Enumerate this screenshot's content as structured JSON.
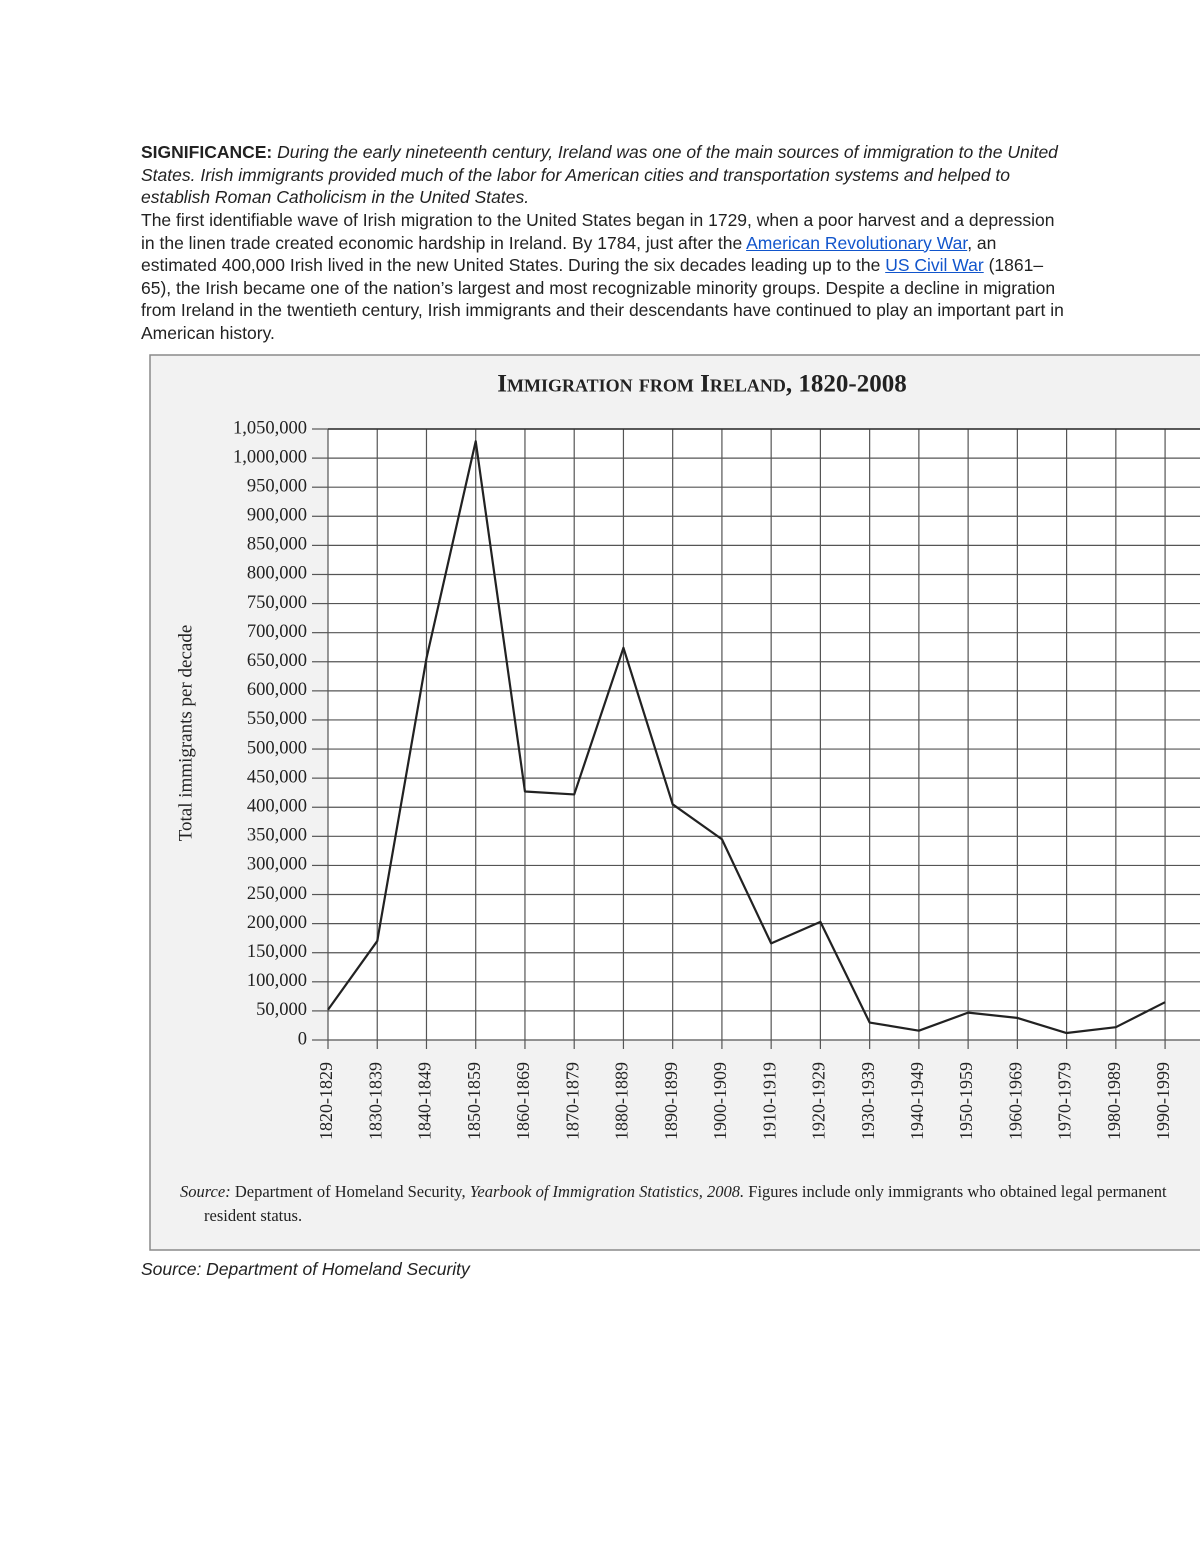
{
  "intro": {
    "label": "SIGNIFICANCE:",
    "text": "During the early nineteenth century, Ireland was one of the main sources of immigration to the United States. Irish immigrants provided much of the labor for American cities and transportation systems and helped to establish Roman Catholicism in the United States."
  },
  "body": [
    "The first identifiable wave of Irish migration to the United States began in 1729, when a poor harvest and a depression in the linen trade created economic hardship in Ireland. By 1784, just after the ",
    "American Revolutionary War",
    ", an estimated 400,000 Irish lived in the new United States. During the six decades leading up to the ",
    "US Civil War",
    " (1861–65), the Irish became one of the nation’s largest and most recognizable minority groups. Despite a decline in migration from Ireland in the twentieth century, Irish immigrants and their descendants have continued to play an important part in American history."
  ],
  "chart_data": {
    "type": "line",
    "title": "Immigration from Ireland, 1820-2008",
    "y_label": "Total immigrants per decade",
    "categories": [
      "1820-1829",
      "1830-1839",
      "1840-1849",
      "1850-1859",
      "1860-1869",
      "1870-1879",
      "1880-1889",
      "1890-1899",
      "1900-1909",
      "1910-1919",
      "1920-1929",
      "1930-1939",
      "1940-1949",
      "1950-1959",
      "1960-1969",
      "1970-1979",
      "1980-1989",
      "1990-1999"
    ],
    "values": [
      52000,
      170000,
      656000,
      1029000,
      427000,
      422000,
      674000,
      405000,
      345000,
      166000,
      203000,
      30000,
      16000,
      47000,
      38000,
      12000,
      22000,
      65000
    ],
    "color": "#222222",
    "grid": true,
    "ylim": [
      0,
      1050000
    ],
    "yticks": [
      0,
      {
        "value": 50000,
        "label": "50,000"
      },
      {
        "value": 100000,
        "label": "100,000"
      },
      {
        "value": 150000,
        "label": "150,000"
      },
      {
        "value": 200000,
        "label": "200,000"
      },
      {
        "value": 250000,
        "label": "250,000"
      },
      {
        "value": 300000,
        "label": "300,000"
      },
      {
        "value": 350000,
        "label": "350,000"
      },
      {
        "value": 400000,
        "label": "400,000"
      },
      {
        "value": 450000,
        "label": "450,000"
      },
      {
        "value": 500000,
        "label": "500,000"
      },
      {
        "value": 550000,
        "label": "550,000"
      },
      {
        "value": 600000,
        "label": "600,000"
      },
      {
        "value": 650000,
        "label": "650,000"
      },
      {
        "value": 700000,
        "label": "700,000"
      },
      {
        "value": 750000,
        "label": "750,000"
      },
      {
        "value": 800000,
        "label": "800,000"
      },
      {
        "value": 850000,
        "label": "850,000"
      },
      {
        "value": 900000,
        "label": "900,000"
      },
      {
        "value": 950000,
        "label": "950,000"
      },
      {
        "value": 1000000,
        "label": "1,000,000"
      },
      {
        "value": 1050000,
        "label": "1,050,000"
      }
    ],
    "note": {
      "label": "Source:",
      "org": "Department of Homeland Security,",
      "publication": "Yearbook of Immigration Statistics, 2008.",
      "text": "Figures include only immigrants who obtained legal permanent resident status."
    }
  },
  "caption": "Source: Department of Homeland Security"
}
